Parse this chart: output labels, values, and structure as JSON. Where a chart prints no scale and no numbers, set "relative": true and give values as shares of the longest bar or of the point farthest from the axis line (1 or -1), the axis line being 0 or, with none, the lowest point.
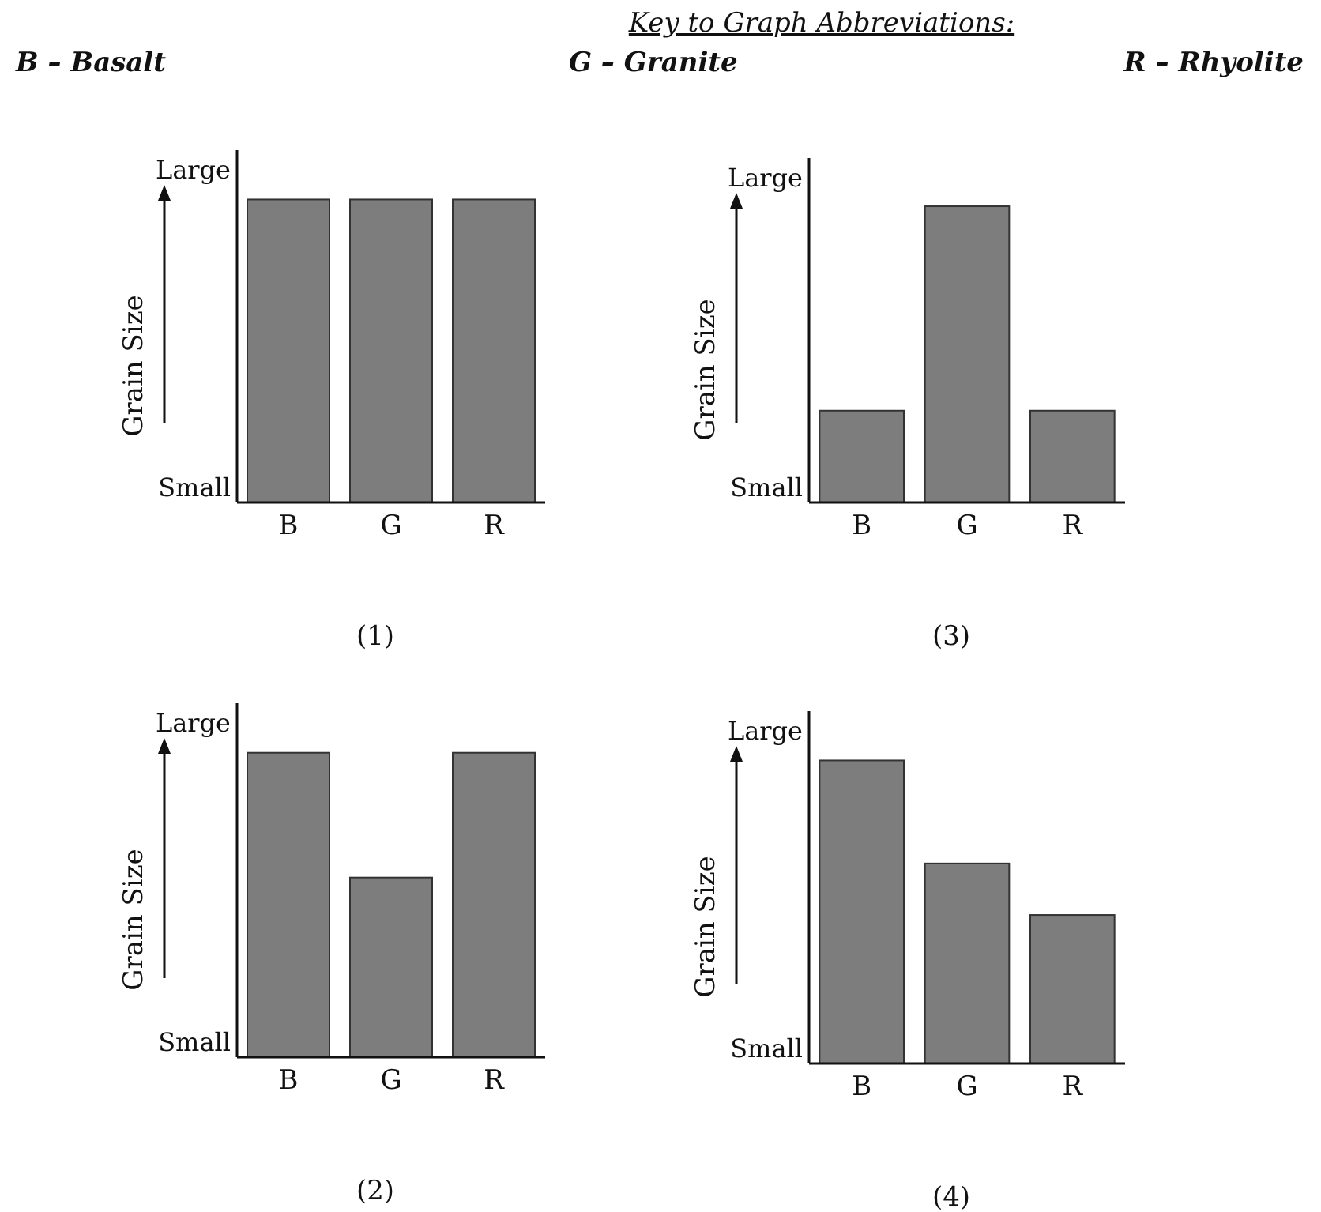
{
  "chart_data": [
    {
      "type": "other",
      "title": "Key to Graph Abbreviations:",
      "annotations": [
        "B – Basalt",
        "G – Granite",
        "R – Rhyolite"
      ]
    },
    {
      "type": "bar",
      "title": "(1)",
      "ylabel": "Grain Size",
      "annotations": [
        "Large",
        "Small"
      ],
      "categories": [
        "B",
        "G",
        "R"
      ],
      "values": [
        1,
        1,
        1
      ],
      "color": "#7d7d7d",
      "relative": true
    },
    {
      "type": "bar",
      "title": "(3)",
      "ylabel": "Grain Size",
      "annotations": [
        "Large",
        "Small"
      ],
      "categories": [
        "B",
        "G",
        "R"
      ],
      "values": [
        0.31,
        1,
        0.31
      ],
      "color": "#7d7d7d",
      "relative": true
    },
    {
      "type": "bar",
      "title": "(2)",
      "ylabel": "Grain Size",
      "annotations": [
        "Large",
        "Small"
      ],
      "categories": [
        "B",
        "G",
        "R"
      ],
      "values": [
        1,
        0.59,
        1
      ],
      "color": "#7d7d7d",
      "relative": true
    },
    {
      "type": "bar",
      "title": "(4)",
      "ylabel": "Grain Size",
      "annotations": [
        "Large",
        "Small"
      ],
      "categories": [
        "B",
        "G",
        "R"
      ],
      "values": [
        1,
        0.66,
        0.49
      ],
      "color": "#7d7d7d",
      "relative": true
    }
  ]
}
